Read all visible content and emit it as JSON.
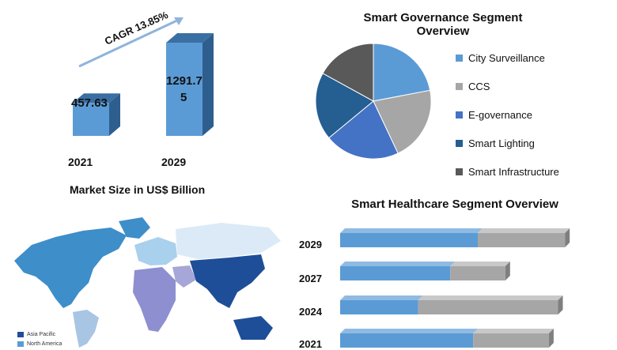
{
  "market_size": {
    "caption": "Market Size in US$ Billion",
    "cagr": "CAGR 13.85%",
    "bars": [
      {
        "year": "2021",
        "value": 457.63,
        "label": "457.63"
      },
      {
        "year": "2029",
        "value": 1291.75,
        "label_line1": "1291.7",
        "label_line2": "5"
      }
    ]
  },
  "governance": {
    "title_line1": "Smart Governance Segment",
    "title_line2": "Overview",
    "legend": [
      {
        "name": "City Surveillance",
        "color": "#5b9bd5"
      },
      {
        "name": "CCS",
        "color": "#a6a6a6"
      },
      {
        "name": "E-governance",
        "color": "#4472c4"
      },
      {
        "name": "Smart Lighting",
        "color": "#255e91"
      },
      {
        "name": "Smart Infrastructure",
        "color": "#595959"
      }
    ]
  },
  "healthcare": {
    "title": "Smart Healthcare  Segment Overview",
    "years": [
      "2029",
      "2027",
      "2024",
      "2021"
    ]
  },
  "map": {
    "legend": [
      {
        "name": "Asia Pacific",
        "color": "#1f4e99"
      },
      {
        "name": "North America",
        "color": "#5b9bd5"
      }
    ]
  },
  "chart_data": [
    {
      "type": "bar",
      "categories": [
        "2021",
        "2029"
      ],
      "values": [
        457.63,
        1291.75
      ],
      "title": "Market Size in US$ Billion",
      "annotation": "CAGR 13.85%"
    },
    {
      "type": "pie",
      "title": "Smart Governance Segment Overview",
      "labels": [
        "City Surveillance",
        "CCS",
        "E-governance",
        "Smart Lighting",
        "Smart Infrastructure"
      ],
      "values": [
        22,
        21,
        21,
        19,
        17
      ],
      "colors": [
        "#5b9bd5",
        "#a6a6a6",
        "#4472c4",
        "#255e91",
        "#595959"
      ]
    },
    {
      "type": "bar",
      "orientation": "horizontal",
      "stacked": true,
      "title": "Smart Healthcare  Segment Overview",
      "categories": [
        "2029",
        "2027",
        "2024",
        "2021"
      ],
      "series": [
        {
          "values": [
            60,
            48,
            34,
            58
          ],
          "color": "#5b9bd5"
        },
        {
          "values": [
            38,
            24,
            61,
            33
          ],
          "color": "#a6a6a6"
        }
      ],
      "xlim": [
        0,
        100
      ]
    }
  ]
}
